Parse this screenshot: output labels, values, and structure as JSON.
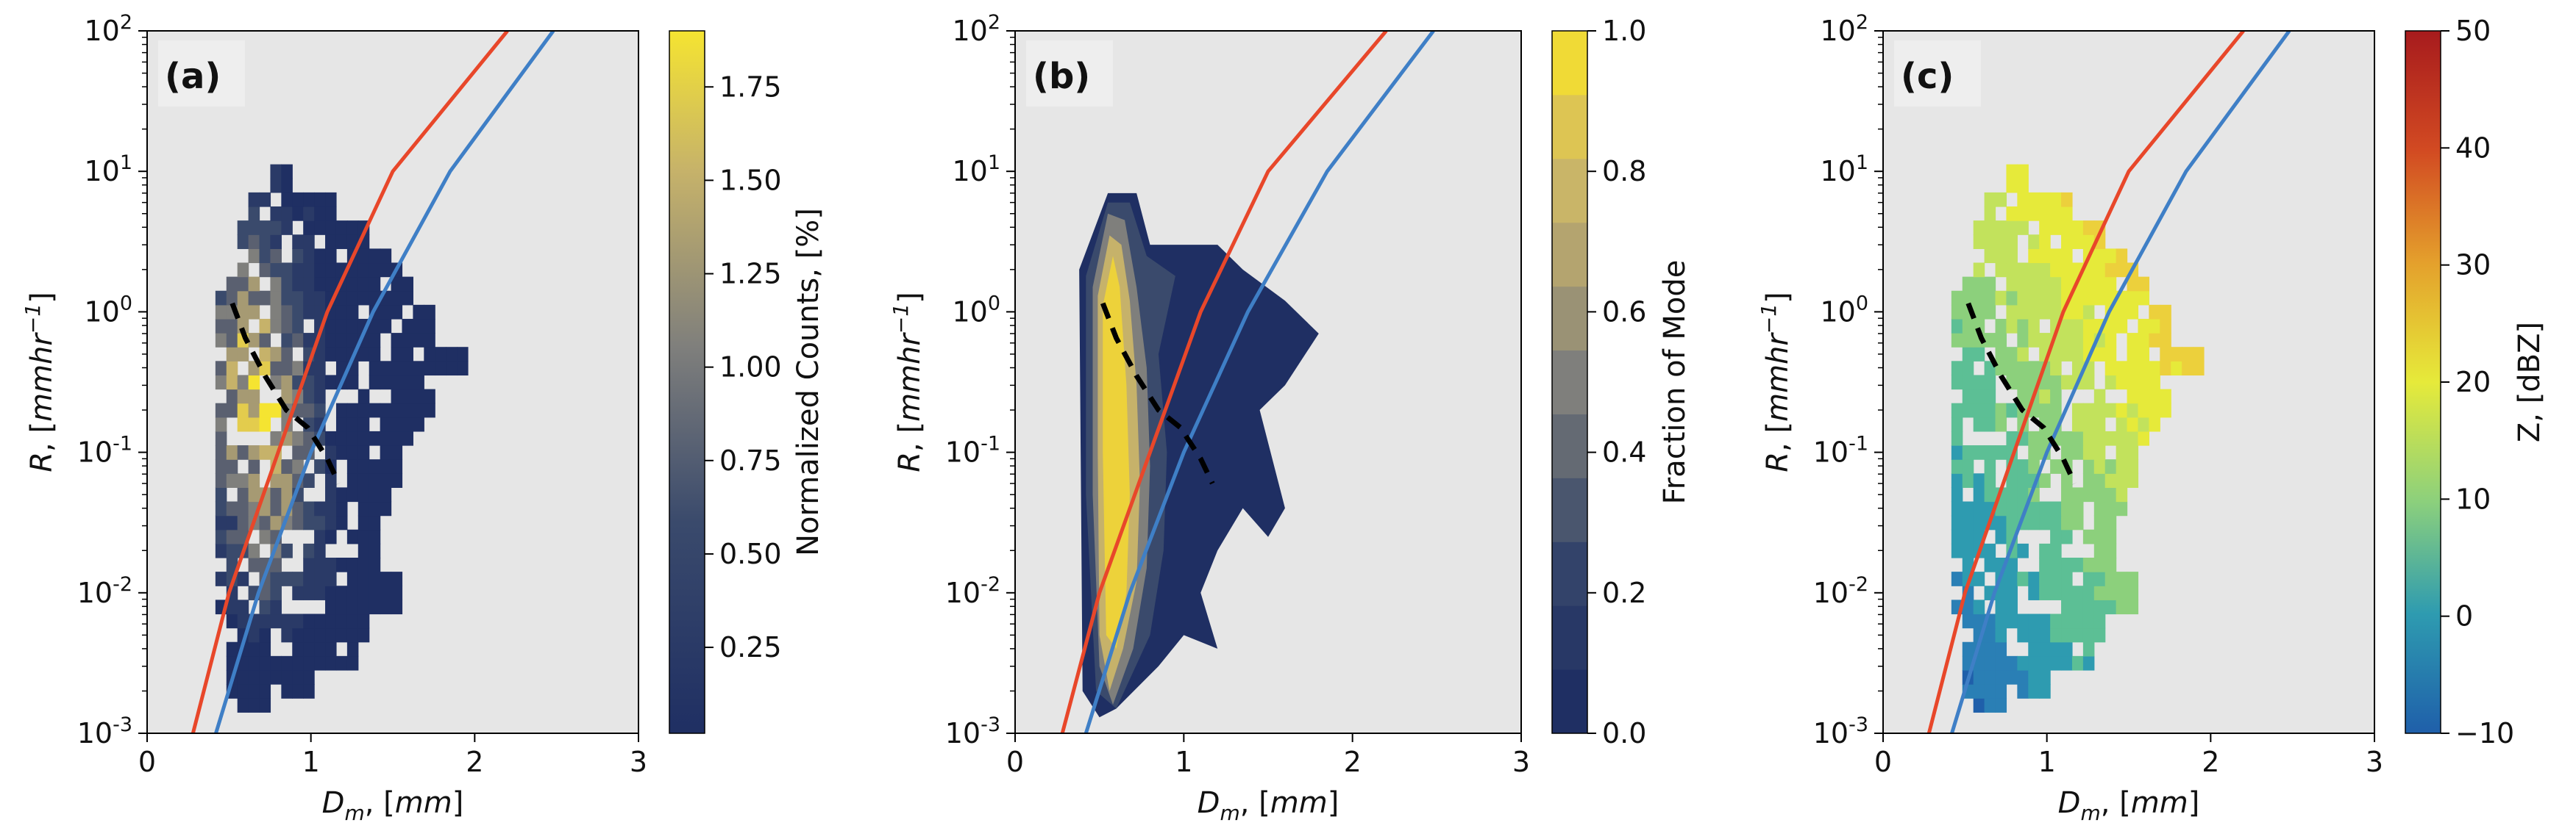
{
  "chart_data": [
    {
      "type": "heatmap",
      "panel": "(a)",
      "xlabel": "D_m, [mm]",
      "ylabel": "R, [mmhr^-1]",
      "xlim": [
        0,
        3
      ],
      "ylim": [
        0.001,
        100
      ],
      "yscale": "log",
      "x_ticks": [
        "0",
        "1",
        "2",
        "3"
      ],
      "y_tick_exponents": [
        "-3",
        "-2",
        "-1",
        "0",
        "1",
        "2"
      ],
      "colorbar": {
        "label": "Normalized Counts, [%]",
        "range": [
          0.02,
          1.9
        ],
        "ticks": [
          "0.25",
          "0.50",
          "0.75",
          "1.00",
          "1.25",
          "1.50",
          "1.75"
        ]
      }
    },
    {
      "type": "contour",
      "panel": "(b)",
      "xlabel": "D_m, [mm]",
      "ylabel": "R, [mmhr^-1]",
      "xlim": [
        0,
        3
      ],
      "ylim": [
        0.001,
        100
      ],
      "yscale": "log",
      "x_ticks": [
        "0",
        "1",
        "2",
        "3"
      ],
      "y_tick_exponents": [
        "-3",
        "-2",
        "-1",
        "0",
        "1",
        "2"
      ],
      "colorbar": {
        "label": "Fraction of Mode",
        "range": [
          0,
          1
        ],
        "ticks": [
          "0.0",
          "0.2",
          "0.4",
          "0.6",
          "0.8",
          "1.0"
        ]
      }
    },
    {
      "type": "heatmap",
      "panel": "(c)",
      "xlabel": "D_m, [mm]",
      "ylabel": "R, [mmhr^-1]",
      "xlim": [
        0,
        3
      ],
      "ylim": [
        0.001,
        100
      ],
      "yscale": "log",
      "x_ticks": [
        "0",
        "1",
        "2",
        "3"
      ],
      "y_tick_exponents": [
        "-3",
        "-2",
        "-1",
        "0",
        "1",
        "2"
      ],
      "colorbar": {
        "label": "Z, [dBZ]",
        "range": [
          -10,
          50
        ],
        "ticks": [
          "−10",
          "0",
          "10",
          "20",
          "30",
          "40",
          "50"
        ]
      }
    }
  ],
  "overlay_lines": {
    "red_curve": {
      "color": "#e8472a",
      "points": [
        [
          0.28,
          0.001
        ],
        [
          0.5,
          0.01
        ],
        [
          0.8,
          0.1
        ],
        [
          1.1,
          1
        ],
        [
          1.5,
          10
        ],
        [
          2.2,
          100
        ]
      ]
    },
    "blue_curve": {
      "color": "#3f7fc6",
      "points": [
        [
          0.42,
          0.001
        ],
        [
          0.68,
          0.01
        ],
        [
          1.0,
          0.1
        ],
        [
          1.38,
          1
        ],
        [
          1.85,
          10
        ],
        [
          2.48,
          100
        ]
      ]
    },
    "black_dashed": {
      "color": "#000000",
      "points": [
        [
          0.52,
          1.15
        ],
        [
          0.6,
          0.65
        ],
        [
          0.72,
          0.35
        ],
        [
          0.85,
          0.2
        ],
        [
          0.98,
          0.15
        ],
        [
          1.1,
          0.09
        ],
        [
          1.17,
          0.06
        ]
      ]
    }
  },
  "heatmap_extent": {
    "bins": [
      [
        0.72,
        0.88,
        8
      ],
      [
        0.62,
        1.15,
        5
      ],
      [
        0.55,
        1.3,
        3
      ],
      [
        0.45,
        1.5,
        2
      ],
      [
        0.4,
        1.6,
        1.2
      ],
      [
        0.4,
        1.7,
        0.7
      ],
      [
        0.38,
        1.9,
        0.4
      ],
      [
        0.38,
        1.75,
        0.2
      ],
      [
        0.38,
        1.65,
        0.12
      ],
      [
        0.38,
        1.55,
        0.07
      ],
      [
        0.38,
        1.45,
        0.04
      ],
      [
        0.4,
        1.4,
        0.025
      ],
      [
        0.4,
        1.4,
        0.015
      ],
      [
        0.42,
        1.5,
        0.009
      ],
      [
        0.45,
        1.35,
        0.005
      ],
      [
        0.45,
        1.25,
        0.003
      ],
      [
        0.45,
        1.0,
        0.0018
      ],
      [
        0.48,
        0.7,
        0.0012
      ]
    ]
  }
}
